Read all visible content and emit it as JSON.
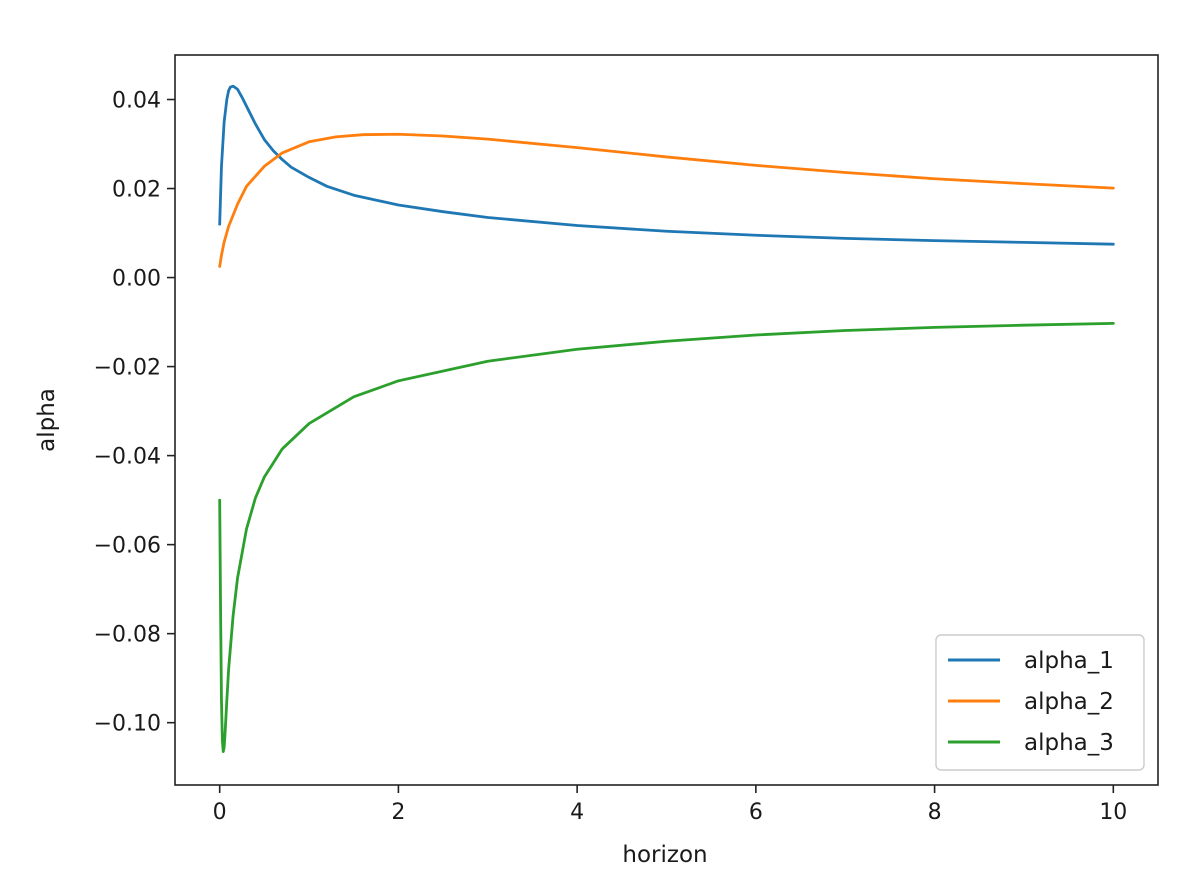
{
  "chart_data": {
    "type": "line",
    "title": "",
    "xlabel": "horizon",
    "ylabel": "alpha",
    "xlim": [
      -0.5,
      10.5
    ],
    "ylim": [
      -0.114,
      0.05
    ],
    "xticks": [
      0,
      2,
      4,
      6,
      8,
      10
    ],
    "xtick_labels": [
      "0",
      "2",
      "4",
      "6",
      "8",
      "10"
    ],
    "yticks": [
      0.04,
      0.02,
      0.0,
      -0.02,
      -0.04,
      -0.06,
      -0.08,
      -0.1
    ],
    "ytick_labels": [
      "0.04",
      "0.02",
      "0.00",
      "−0.02",
      "−0.04",
      "−0.06",
      "−0.08",
      "−0.10"
    ],
    "grid": false,
    "legend_position": "lower-right",
    "series": [
      {
        "name": "alpha_1",
        "color": "#1f77b4",
        "x": [
          0.0,
          0.02,
          0.05,
          0.08,
          0.1,
          0.12,
          0.15,
          0.2,
          0.25,
          0.3,
          0.4,
          0.5,
          0.6,
          0.7,
          0.8,
          1.0,
          1.2,
          1.5,
          2.0,
          2.5,
          3.0,
          4.0,
          5.0,
          6.0,
          7.0,
          8.0,
          9.0,
          10.0
        ],
        "y": [
          0.012,
          0.025,
          0.035,
          0.04,
          0.042,
          0.0428,
          0.043,
          0.0423,
          0.0405,
          0.0385,
          0.0345,
          0.031,
          0.0285,
          0.0265,
          0.0248,
          0.0225,
          0.0205,
          0.0185,
          0.0163,
          0.0148,
          0.0135,
          0.0117,
          0.0104,
          0.0095,
          0.0088,
          0.0083,
          0.0079,
          0.0075
        ]
      },
      {
        "name": "alpha_2",
        "color": "#ff7f0e",
        "x": [
          0.0,
          0.02,
          0.05,
          0.1,
          0.2,
          0.3,
          0.5,
          0.7,
          1.0,
          1.3,
          1.6,
          2.0,
          2.5,
          3.0,
          4.0,
          5.0,
          6.0,
          7.0,
          8.0,
          9.0,
          10.0
        ],
        "y": [
          0.0025,
          0.005,
          0.008,
          0.0115,
          0.0165,
          0.0205,
          0.025,
          0.028,
          0.0305,
          0.0316,
          0.0321,
          0.0322,
          0.0318,
          0.0311,
          0.0292,
          0.0271,
          0.0252,
          0.0236,
          0.0222,
          0.0211,
          0.0201
        ]
      },
      {
        "name": "alpha_3",
        "color": "#2ca02c",
        "x": [
          0.0,
          0.01,
          0.02,
          0.03,
          0.04,
          0.05,
          0.06,
          0.08,
          0.1,
          0.15,
          0.2,
          0.3,
          0.4,
          0.5,
          0.7,
          1.0,
          1.5,
          2.0,
          3.0,
          4.0,
          5.0,
          6.0,
          7.0,
          8.0,
          9.0,
          10.0
        ],
        "y": [
          -0.05,
          -0.075,
          -0.095,
          -0.104,
          -0.1065,
          -0.1055,
          -0.1025,
          -0.095,
          -0.088,
          -0.076,
          -0.0675,
          -0.0565,
          -0.0495,
          -0.0448,
          -0.0385,
          -0.0328,
          -0.0268,
          -0.0232,
          -0.0188,
          -0.0161,
          -0.0143,
          -0.0129,
          -0.0119,
          -0.0112,
          -0.0107,
          -0.0103
        ]
      }
    ]
  }
}
